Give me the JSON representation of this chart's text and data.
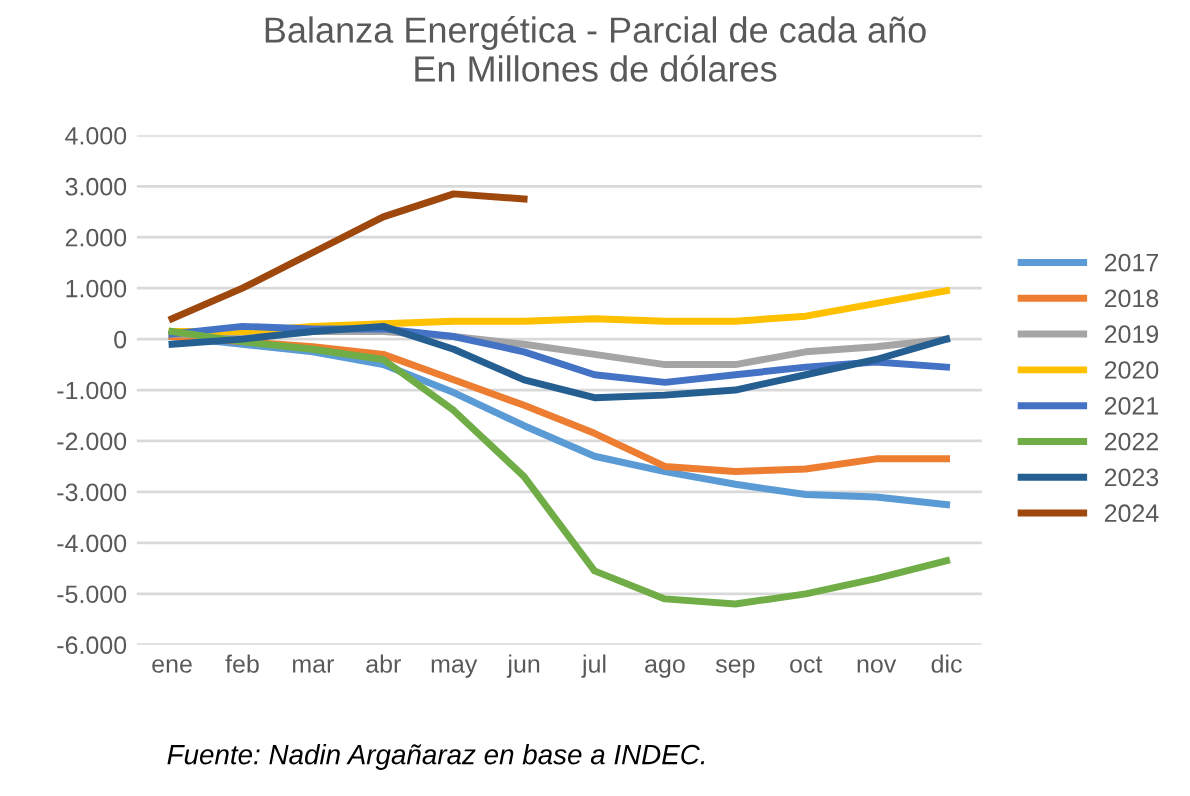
{
  "chart_data": {
    "type": "line",
    "title": "Balanza Energética - Parcial de cada año\nEn Millones de dólares",
    "categories": [
      "ene",
      "feb",
      "mar",
      "abr",
      "may",
      "jun",
      "jul",
      "ago",
      "sep",
      "oct",
      "nov",
      "dic"
    ],
    "series": [
      {
        "name": "2017",
        "color": "#5b9bd5",
        "values": [
          50,
          -100,
          -250,
          -500,
          -1050,
          -1700,
          -2300,
          -2600,
          -2850,
          -3050,
          -3100,
          -3250
        ]
      },
      {
        "name": "2018",
        "color": "#ed7d31",
        "values": [
          50,
          -50,
          -150,
          -300,
          -800,
          -1300,
          -1850,
          -2500,
          -2600,
          -2550,
          -2350,
          -2350
        ]
      },
      {
        "name": "2019",
        "color": "#a5a5a5",
        "values": [
          100,
          50,
          150,
          150,
          50,
          -100,
          -300,
          -500,
          -500,
          -250,
          -150,
          0
        ]
      },
      {
        "name": "2020",
        "color": "#ffc000",
        "values": [
          150,
          150,
          250,
          300,
          350,
          350,
          400,
          350,
          350,
          450,
          700,
          950
        ]
      },
      {
        "name": "2021",
        "color": "#4472c4",
        "values": [
          100,
          250,
          200,
          200,
          50,
          -250,
          -700,
          -850,
          -700,
          -550,
          -450,
          -550
        ]
      },
      {
        "name": "2022",
        "color": "#70ad47",
        "values": [
          150,
          -50,
          -200,
          -400,
          -1400,
          -2700,
          -4550,
          -5100,
          -5200,
          -5000,
          -4700,
          -4350
        ]
      },
      {
        "name": "2023",
        "color": "#255e91",
        "values": [
          -100,
          0,
          150,
          250,
          -200,
          -800,
          -1150,
          -1100,
          -1000,
          -700,
          -400,
          0
        ]
      },
      {
        "name": "2024",
        "color": "#9e480e",
        "values": [
          400,
          1000,
          1700,
          2400,
          2850,
          2750,
          null,
          null,
          null,
          null,
          null,
          null
        ]
      }
    ],
    "ylim": [
      -6000,
      4000
    ],
    "yticks": [
      {
        "value": -6000,
        "label": "-6.000"
      },
      {
        "value": -5000,
        "label": "-5.000"
      },
      {
        "value": -4000,
        "label": "-4.000"
      },
      {
        "value": -3000,
        "label": "-3.000"
      },
      {
        "value": -2000,
        "label": "-2.000"
      },
      {
        "value": -1000,
        "label": "-1.000"
      },
      0,
      {
        "value": 1000,
        "label": "1.000"
      },
      {
        "value": 2000,
        "label": "2.000"
      },
      {
        "value": 3000,
        "label": "3.000"
      },
      {
        "value": 4000,
        "label": "4.000"
      }
    ],
    "grid": "y",
    "legend": "right",
    "annotations": [
      "Fuente: Nadin Argañaraz en base a INDEC."
    ]
  }
}
